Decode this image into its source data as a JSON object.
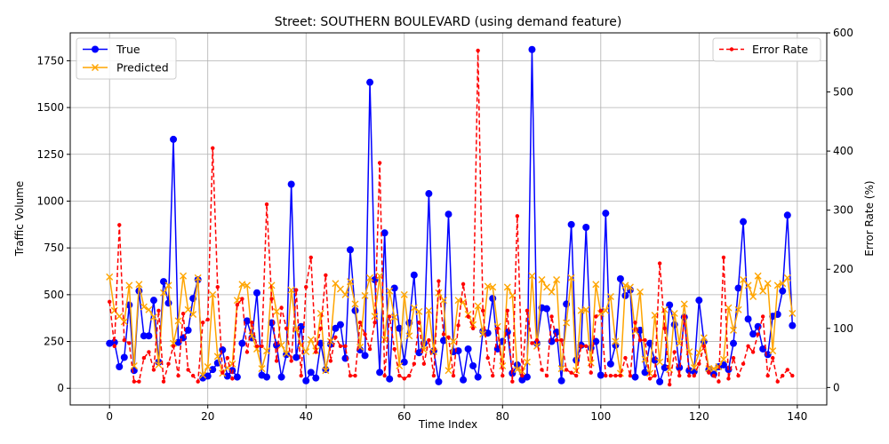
{
  "chart_data": {
    "type": "line",
    "title": "Street: SOUTHERN BOULEVARD (using demand feature)",
    "xlabel": "Time Index",
    "ylabel": "Traffic Volume",
    "ylabel_right": "Error Rate (%)",
    "xlim": [
      -8,
      146
    ],
    "ylim": [
      -89,
      1899
    ],
    "ylim_right": [
      -29.5,
      600
    ],
    "x_ticks": [
      0,
      20,
      40,
      60,
      80,
      100,
      120,
      140
    ],
    "x_tick_labels": [
      "0",
      "20",
      "40",
      "60",
      "80",
      "100",
      "120",
      "140"
    ],
    "y_ticks": [
      0,
      250,
      500,
      750,
      1000,
      1250,
      1500,
      1750
    ],
    "y_tick_labels": [
      "0",
      "250",
      "500",
      "750",
      "1000",
      "1250",
      "1500",
      "1750"
    ],
    "y_ticks_right": [
      0,
      100,
      200,
      300,
      400,
      500,
      600
    ],
    "y_tick_labels_right": [
      "0",
      "100",
      "200",
      "300",
      "400",
      "500",
      "600"
    ],
    "grid": true,
    "legend_left_placement": "upper-left",
    "legend_right_placement": "upper-right",
    "x": [
      0,
      1,
      2,
      3,
      4,
      5,
      6,
      7,
      8,
      9,
      10,
      11,
      12,
      13,
      14,
      15,
      16,
      17,
      18,
      19,
      20,
      21,
      22,
      23,
      24,
      25,
      26,
      27,
      28,
      29,
      30,
      31,
      32,
      33,
      34,
      35,
      36,
      37,
      38,
      39,
      40,
      41,
      42,
      43,
      44,
      45,
      46,
      47,
      48,
      49,
      50,
      51,
      52,
      53,
      54,
      55,
      56,
      57,
      58,
      59,
      60,
      61,
      62,
      63,
      64,
      65,
      66,
      67,
      68,
      69,
      70,
      71,
      72,
      73,
      74,
      75,
      76,
      77,
      78,
      79,
      80,
      81,
      82,
      83,
      84,
      85,
      86,
      87,
      88,
      89,
      90,
      91,
      92,
      93,
      94,
      95,
      96,
      97,
      98,
      99,
      100,
      101,
      102,
      103,
      104,
      105,
      106,
      107,
      108,
      109,
      110,
      111,
      112,
      113,
      114,
      115,
      116,
      117,
      118,
      119,
      120,
      121,
      122,
      123,
      124,
      125,
      126,
      127,
      128,
      129,
      130,
      131,
      132,
      133,
      134,
      135,
      136,
      137,
      138,
      139
    ],
    "series": [
      {
        "name": "True",
        "axis": "left",
        "color": "#0000ff",
        "marker": "circle",
        "values": [
          240,
          245,
          115,
          165,
          445,
          95,
          520,
          280,
          280,
          470,
          140,
          570,
          455,
          1330,
          245,
          270,
          310,
          480,
          580,
          55,
          65,
          100,
          135,
          205,
          65,
          95,
          60,
          240,
          360,
          270,
          510,
          70,
          60,
          350,
          230,
          60,
          180,
          1090,
          165,
          330,
          40,
          85,
          55,
          240,
          100,
          235,
          320,
          340,
          160,
          740,
          415,
          205,
          175,
          1635,
          580,
          85,
          830,
          50,
          535,
          320,
          140,
          350,
          605,
          190,
          240,
          1040,
          200,
          35,
          255,
          930,
          195,
          200,
          45,
          210,
          120,
          60,
          305,
          295,
          480,
          210,
          250,
          300,
          80,
          125,
          45,
          60,
          1810,
          240,
          430,
          425,
          250,
          300,
          40,
          450,
          875,
          150,
          230,
          860,
          215,
          250,
          70,
          935,
          130,
          230,
          585,
          495,
          525,
          60,
          310,
          85,
          240,
          150,
          35,
          110,
          445,
          340,
          110,
          380,
          95,
          90,
          470,
          250,
          100,
          75,
          115,
          125,
          100,
          240,
          535,
          890,
          370,
          290,
          330,
          210,
          180,
          385,
          395,
          520,
          925,
          335
        ]
      },
      {
        "name": "Predicted",
        "axis": "left",
        "color": "#ffa500",
        "marker": "x",
        "values": [
          595,
          415,
          385,
          355,
          550,
          120,
          555,
          435,
          420,
          380,
          125,
          510,
          550,
          240,
          360,
          600,
          420,
          395,
          590,
          70,
          115,
          500,
          170,
          80,
          110,
          130,
          470,
          555,
          550,
          280,
          210,
          105,
          200,
          550,
          410,
          230,
          185,
          525,
          315,
          230,
          195,
          260,
          200,
          400,
          95,
          250,
          560,
          530,
          500,
          570,
          450,
          220,
          495,
          590,
          385,
          600,
          260,
          520,
          380,
          120,
          500,
          280,
          430,
          410,
          205,
          415,
          195,
          510,
          470,
          95,
          250,
          470,
          460,
          395,
          340,
          440,
          290,
          545,
          540,
          330,
          120,
          540,
          495,
          100,
          90,
          140,
          600,
          225,
          580,
          540,
          515,
          580,
          105,
          350,
          590,
          95,
          415,
          420,
          135,
          555,
          400,
          415,
          490,
          250,
          80,
          550,
          540,
          305,
          515,
          155,
          80,
          390,
          140,
          420,
          100,
          400,
          240,
          450,
          195,
          110,
          190,
          270,
          105,
          105,
          115,
          155,
          430,
          310,
          420,
          580,
          550,
          490,
          600,
          520,
          560,
          200,
          550,
          560,
          590,
          400
        ]
      },
      {
        "name": "Error Rate",
        "axis": "right",
        "color": "#ff0000",
        "marker": "small-circle",
        "dashed": true,
        "values": [
          145,
          70,
          275,
          80,
          75,
          10,
          10,
          50,
          60,
          30,
          130,
          10,
          40,
          70,
          20,
          125,
          30,
          20,
          10,
          110,
          115,
          405,
          170,
          25,
          50,
          15,
          140,
          150,
          60,
          110,
          70,
          70,
          310,
          150,
          45,
          135,
          100,
          45,
          165,
          20,
          170,
          220,
          60,
          100,
          190,
          45,
          85,
          70,
          70,
          20,
          20,
          110,
          90,
          65,
          110,
          380,
          20,
          120,
          65,
          20,
          15,
          20,
          40,
          110,
          40,
          80,
          20,
          180,
          90,
          85,
          20,
          105,
          175,
          120,
          100,
          570,
          130,
          50,
          20,
          100,
          20,
          130,
          10,
          290,
          20,
          130,
          75,
          80,
          30,
          20,
          120,
          80,
          80,
          30,
          25,
          20,
          70,
          70,
          25,
          120,
          130,
          20,
          20,
          20,
          20,
          50,
          20,
          110,
          80,
          80,
          15,
          20,
          210,
          100,
          5,
          60,
          20,
          120,
          20,
          20,
          40,
          70,
          25,
          20,
          10,
          220,
          15,
          50,
          20,
          40,
          70,
          60,
          90,
          120,
          20,
          50,
          10,
          20,
          30,
          20
        ]
      }
    ]
  }
}
